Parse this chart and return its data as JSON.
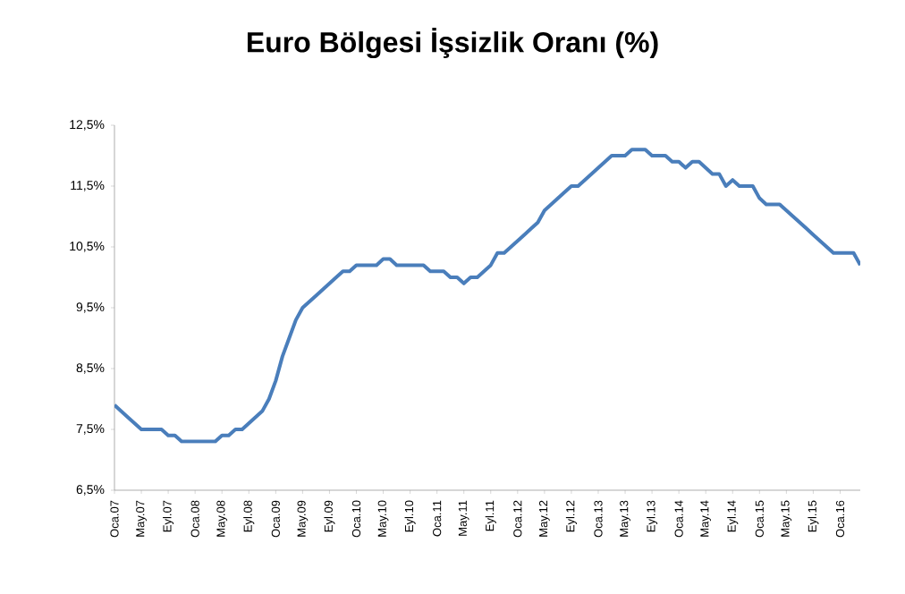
{
  "chart_data": {
    "type": "line",
    "title": "Euro Bölgesi İşsizlik Oranı (%)",
    "categories": [
      "Oca.07",
      null,
      null,
      null,
      "May.07",
      null,
      null,
      null,
      "Eyl.07",
      null,
      null,
      null,
      "Oca.08",
      null,
      null,
      null,
      "May.08",
      null,
      null,
      null,
      "Eyl.08",
      null,
      null,
      null,
      "Oca.09",
      null,
      null,
      null,
      "May.09",
      null,
      null,
      null,
      "Eyl.09",
      null,
      null,
      null,
      "Oca.10",
      null,
      null,
      null,
      "May.10",
      null,
      null,
      null,
      "Eyl.10",
      null,
      null,
      null,
      "Oca.11",
      null,
      null,
      null,
      "May.11",
      null,
      null,
      null,
      "Eyl.11",
      null,
      null,
      null,
      "Oca.12",
      null,
      null,
      null,
      "May.12",
      null,
      null,
      null,
      "Eyl.12",
      null,
      null,
      null,
      "Oca.13",
      null,
      null,
      null,
      "May.13",
      null,
      null,
      null,
      "Eyl.13",
      null,
      null,
      null,
      "Oca.14",
      null,
      null,
      null,
      "May.14",
      null,
      null,
      null,
      "Eyl.14",
      null,
      null,
      null,
      "Oca.15",
      null,
      null,
      null,
      "May.15",
      null,
      null,
      null,
      "Eyl.15",
      null,
      null,
      null,
      "Oca.16",
      null,
      null,
      null
    ],
    "series": [
      {
        "color": "#4a7ebb",
        "values": [
          7.9,
          7.8,
          7.7,
          7.6,
          7.5,
          7.5,
          7.5,
          7.5,
          7.4,
          7.4,
          7.3,
          7.3,
          7.3,
          7.3,
          7.3,
          7.3,
          7.4,
          7.4,
          7.5,
          7.5,
          7.6,
          7.7,
          7.8,
          8.0,
          8.3,
          8.7,
          9.0,
          9.3,
          9.5,
          9.6,
          9.7,
          9.8,
          9.9,
          10.0,
          10.1,
          10.1,
          10.2,
          10.2,
          10.2,
          10.2,
          10.3,
          10.3,
          10.2,
          10.2,
          10.2,
          10.2,
          10.2,
          10.1,
          10.1,
          10.1,
          10.0,
          10.0,
          9.9,
          10.0,
          10.0,
          10.1,
          10.2,
          10.4,
          10.4,
          10.5,
          10.6,
          10.7,
          10.8,
          10.9,
          11.1,
          11.2,
          11.3,
          11.4,
          11.5,
          11.5,
          11.6,
          11.7,
          11.8,
          11.9,
          12.0,
          12.0,
          12.0,
          12.1,
          12.1,
          12.1,
          12.0,
          12.0,
          12.0,
          11.9,
          11.9,
          11.8,
          11.9,
          11.9,
          11.8,
          11.7,
          11.7,
          11.5,
          11.6,
          11.5,
          11.5,
          11.5,
          11.3,
          11.2,
          11.2,
          11.2,
          11.1,
          11.0,
          10.9,
          10.8,
          10.7,
          10.6,
          10.5,
          10.4,
          10.4,
          10.4,
          10.4,
          10.2
        ]
      }
    ],
    "ylim": [
      6.5,
      12.5
    ],
    "yticks": [
      {
        "value": 6.5,
        "label": "6,5%"
      },
      {
        "value": 7.5,
        "label": "7,5%"
      },
      {
        "value": 8.5,
        "label": "8,5%"
      },
      {
        "value": 9.5,
        "label": "9,5%"
      },
      {
        "value": 10.5,
        "label": "10,5%"
      },
      {
        "value": 11.5,
        "label": "11,5%"
      },
      {
        "value": 12.5,
        "label": "12,5%"
      }
    ],
    "grid": false,
    "legend": false,
    "marker": "none",
    "line_style": "solid"
  }
}
